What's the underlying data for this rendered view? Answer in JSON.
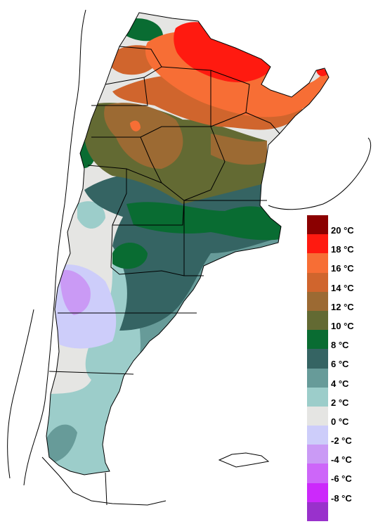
{
  "legend": {
    "unit": "°C",
    "items": [
      {
        "label": "20 °C",
        "color": "#8b0000"
      },
      {
        "label": "18 °C",
        "color": "#ff1a10"
      },
      {
        "label": "16 °C",
        "color": "#f76e35"
      },
      {
        "label": "14 °C",
        "color": "#d0652d"
      },
      {
        "label": "12 °C",
        "color": "#9c6a33"
      },
      {
        "label": "10 °C",
        "color": "#636a33"
      },
      {
        "label": "8 °C",
        "color": "#096c32"
      },
      {
        "label": "6 °C",
        "color": "#356463"
      },
      {
        "label": "4 °C",
        "color": "#679b99"
      },
      {
        "label": "2 °C",
        "color": "#9ccdca"
      },
      {
        "label": "0 °C",
        "color": "#e5e5e3"
      },
      {
        "label": "-2 °C",
        "color": "#cdcdfa"
      },
      {
        "label": "-4 °C",
        "color": "#ca9af5"
      },
      {
        "label": "-6 °C",
        "color": "#cd66f9"
      },
      {
        "label": "-8 °C",
        "color": "#cc29fb"
      },
      {
        "label": "",
        "color": "#9931cc"
      }
    ]
  },
  "map": {
    "country_fill": "#636a33",
    "border_color": "#000000"
  }
}
